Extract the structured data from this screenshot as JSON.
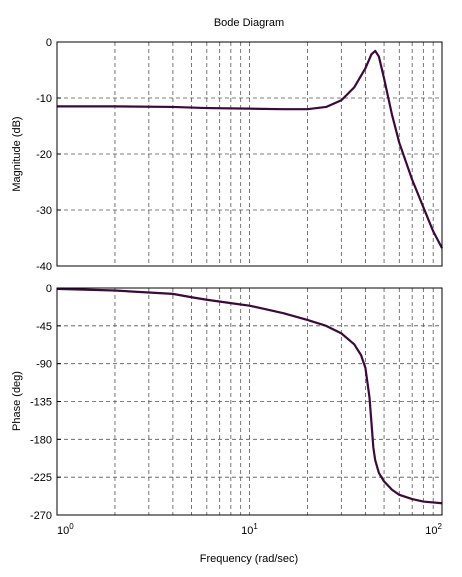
{
  "chart_data": [
    {
      "type": "line",
      "title": "Bode Diagram",
      "ylabel": "Magnitude (dB)",
      "xlabel": "Frequency (rad/sec)",
      "xscale": "log",
      "xlim": [
        1,
        100
      ],
      "ylim": [
        -40,
        0
      ],
      "yticks": [
        0,
        -10,
        -20,
        -30,
        -40
      ],
      "grid": true,
      "line_color": "#3a0a3a",
      "series": [
        {
          "x": [
            1,
            2,
            4,
            6,
            10,
            15,
            20,
            25,
            30,
            35,
            40,
            43,
            45,
            47,
            50,
            55,
            60,
            70,
            80,
            90,
            100
          ],
          "y": [
            -11.5,
            -11.5,
            -11.6,
            -11.8,
            -11.9,
            -12.0,
            -12.0,
            -11.6,
            -10.4,
            -8.1,
            -4.7,
            -2.2,
            -1.6,
            -2.6,
            -6.5,
            -13.0,
            -18.0,
            -24.6,
            -29.5,
            -33.8,
            -36.8
          ]
        }
      ]
    },
    {
      "type": "line",
      "ylabel": "Phase (deg)",
      "xlabel": "Frequency (rad/sec)",
      "xscale": "log",
      "xlim": [
        1,
        100
      ],
      "ylim": [
        -270,
        0
      ],
      "yticks": [
        0,
        -45,
        -90,
        -135,
        -180,
        -225,
        -270
      ],
      "xtick_labels": [
        {
          "base": "10",
          "exp": "0"
        },
        {
          "base": "10",
          "exp": "1"
        },
        {
          "base": "10",
          "exp": "2"
        }
      ],
      "grid": true,
      "line_color": "#3a0a3a",
      "series": [
        {
          "x": [
            1,
            2,
            4,
            5,
            6,
            8,
            10,
            15,
            20,
            25,
            30,
            35,
            38,
            40,
            42,
            43,
            44,
            45,
            47,
            50,
            55,
            60,
            70,
            80,
            100
          ],
          "y": [
            -1,
            -3,
            -7,
            -11,
            -14,
            -18,
            -21,
            -30,
            -38,
            -45,
            -54,
            -67,
            -80,
            -95,
            -130,
            -160,
            -190,
            -205,
            -220,
            -230,
            -240,
            -246,
            -251,
            -254,
            -256
          ]
        }
      ]
    }
  ]
}
